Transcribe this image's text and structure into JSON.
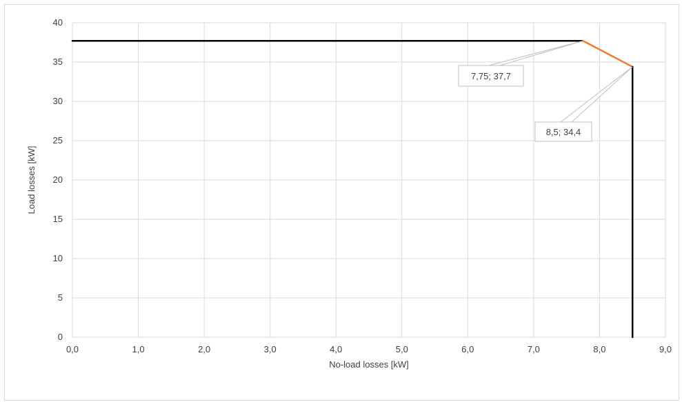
{
  "chart_data": {
    "type": "line",
    "title": "",
    "xlabel": "No-load losses [kW]",
    "ylabel": "Load losses [kW]",
    "xlim": [
      0,
      9
    ],
    "ylim": [
      0,
      40
    ],
    "x_ticks": [
      0,
      1,
      2,
      3,
      4,
      5,
      6,
      7,
      8,
      9
    ],
    "x_tick_labels": [
      "0,0",
      "1,0",
      "2,0",
      "3,0",
      "4,0",
      "5,0",
      "6,0",
      "7,0",
      "8,0",
      "9,0"
    ],
    "y_ticks": [
      0,
      5,
      10,
      15,
      20,
      25,
      30,
      35,
      40
    ],
    "y_tick_labels": [
      "0",
      "5",
      "10",
      "15",
      "20",
      "25",
      "30",
      "35",
      "40"
    ],
    "grid": true,
    "legend": "none",
    "series": [
      {
        "color": "#000000",
        "x": [
          0,
          7.75
        ],
        "y": [
          37.7,
          37.7
        ]
      },
      {
        "color": "#ed7d31",
        "x": [
          7.75,
          8.5
        ],
        "y": [
          37.7,
          34.4
        ]
      },
      {
        "color": "#000000",
        "x": [
          8.5,
          8.5
        ],
        "y": [
          34.4,
          0
        ]
      }
    ],
    "annotations": [
      {
        "x": 7.75,
        "y": 37.7,
        "text": "7,75; 37,7"
      },
      {
        "x": 8.5,
        "y": 34.4,
        "text": "8,5; 34,4"
      }
    ]
  }
}
